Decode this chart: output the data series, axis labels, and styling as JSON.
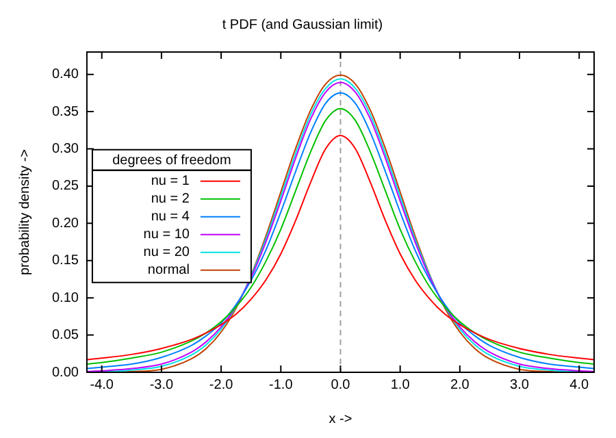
{
  "chart_data": {
    "type": "line",
    "title": "t PDF (and Gaussian limit)",
    "xlabel": "x ->",
    "ylabel": "probability density ->",
    "legend_title": "degrees of freedom",
    "x": [
      -4.25,
      -4,
      -3.5,
      -3,
      -2.5,
      -2.25,
      -2,
      -1.75,
      -1.5,
      -1.25,
      -1,
      -0.75,
      -0.5,
      -0.25,
      0,
      0.25,
      0.5,
      0.75,
      1,
      1.25,
      1.5,
      1.75,
      2,
      2.25,
      2.5,
      3,
      3.5,
      4,
      4.25
    ],
    "series": [
      {
        "name": "nu = 1",
        "color": "#ff0000",
        "values": [
          0.017,
          0.019,
          0.024,
          0.032,
          0.044,
          0.053,
          0.064,
          0.078,
          0.098,
          0.124,
          0.159,
          0.204,
          0.255,
          0.3,
          0.318,
          0.3,
          0.255,
          0.204,
          0.159,
          0.124,
          0.098,
          0.078,
          0.064,
          0.053,
          0.044,
          0.032,
          0.024,
          0.019,
          0.017
        ]
      },
      {
        "name": "nu = 2",
        "color": "#00c000",
        "values": [
          0.011,
          0.013,
          0.019,
          0.027,
          0.042,
          0.053,
          0.068,
          0.088,
          0.114,
          0.149,
          0.192,
          0.244,
          0.296,
          0.338,
          0.354,
          0.338,
          0.296,
          0.244,
          0.192,
          0.149,
          0.114,
          0.088,
          0.068,
          0.053,
          0.042,
          0.027,
          0.019,
          0.013,
          0.011
        ]
      },
      {
        "name": "nu = 4",
        "color": "#0080ff",
        "values": [
          0.005,
          0.007,
          0.011,
          0.02,
          0.036,
          0.049,
          0.066,
          0.091,
          0.123,
          0.164,
          0.215,
          0.27,
          0.322,
          0.361,
          0.375,
          0.361,
          0.322,
          0.27,
          0.215,
          0.164,
          0.123,
          0.091,
          0.066,
          0.049,
          0.036,
          0.02,
          0.011,
          0.007,
          0.005
        ]
      },
      {
        "name": "nu = 10",
        "color": "#c000ff",
        "values": [
          0.001,
          0.002,
          0.005,
          0.011,
          0.027,
          0.041,
          0.061,
          0.089,
          0.127,
          0.175,
          0.23,
          0.288,
          0.34,
          0.376,
          0.389,
          0.376,
          0.34,
          0.288,
          0.23,
          0.175,
          0.127,
          0.089,
          0.061,
          0.041,
          0.027,
          0.011,
          0.005,
          0.002,
          0.001
        ]
      },
      {
        "name": "nu = 20",
        "color": "#00e0e0",
        "values": [
          0.001,
          0.001,
          0.003,
          0.008,
          0.023,
          0.037,
          0.058,
          0.088,
          0.129,
          0.179,
          0.236,
          0.294,
          0.346,
          0.381,
          0.394,
          0.381,
          0.346,
          0.294,
          0.236,
          0.179,
          0.129,
          0.088,
          0.058,
          0.037,
          0.023,
          0.008,
          0.003,
          0.001,
          0.001
        ]
      },
      {
        "name": "normal",
        "color": "#c04000",
        "values": [
          0.0,
          0.0,
          0.001,
          0.004,
          0.018,
          0.032,
          0.054,
          0.086,
          0.13,
          0.183,
          0.242,
          0.301,
          0.352,
          0.387,
          0.399,
          0.387,
          0.352,
          0.301,
          0.242,
          0.183,
          0.13,
          0.086,
          0.054,
          0.032,
          0.018,
          0.004,
          0.001,
          0.0,
          0.0
        ]
      }
    ],
    "xlim": [
      -4.25,
      4.25
    ],
    "ylim": [
      0,
      0.43
    ],
    "xticks": [
      {
        "value": -4,
        "label": "-4.0"
      },
      {
        "value": -3,
        "label": "-3.0"
      },
      {
        "value": -2,
        "label": "-2.0"
      },
      {
        "value": -1,
        "label": "-1.0"
      },
      {
        "value": 0,
        "label": "0.0"
      },
      {
        "value": 1,
        "label": "1.0"
      },
      {
        "value": 2,
        "label": "2.0"
      },
      {
        "value": 3,
        "label": "3.0"
      },
      {
        "value": 4,
        "label": "4.0"
      }
    ],
    "yticks": [
      {
        "value": 0,
        "label": "0.00"
      },
      {
        "value": 0.05,
        "label": "0.05"
      },
      {
        "value": 0.1,
        "label": "0.10"
      },
      {
        "value": 0.15,
        "label": "0.15"
      },
      {
        "value": 0.2,
        "label": "0.20"
      },
      {
        "value": 0.25,
        "label": "0.25"
      },
      {
        "value": 0.3,
        "label": "0.30"
      },
      {
        "value": 0.35,
        "label": "0.35"
      },
      {
        "value": 0.4,
        "label": "0.40"
      }
    ],
    "ref_lines": [
      {
        "axis": "x",
        "value": 0,
        "color": "#a0a0a0",
        "line_style": "dashed"
      }
    ],
    "legend": "left",
    "marker": "none",
    "line_style": "solid",
    "grid": false
  }
}
